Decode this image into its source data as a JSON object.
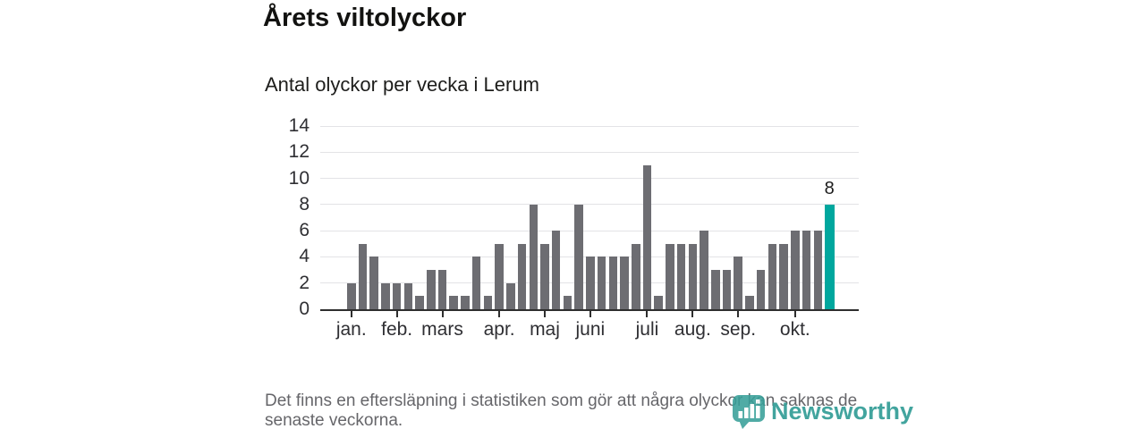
{
  "header": {
    "title": "Årets viltolyckor",
    "subtitle": "Antal olyckor per vecka i Lerum"
  },
  "footer": {
    "note": "Det finns en eftersläpning i statistiken som gör att några olyckor kan saknas de senaste veckorna.",
    "logo_text": "Newsworthy",
    "logo_icon": "newsworthy-bubble-barchart-icon"
  },
  "colors": {
    "bar": "#6d6d72",
    "highlight": "#00a79e",
    "grid": "#e3e3e6",
    "axis": "#2e2e2e",
    "axis_text": "#2f2f33",
    "title_text": "#121210",
    "footnote_text": "#66666a",
    "logo_teal": "#38a099"
  },
  "chart_data": {
    "type": "bar",
    "title": "Årets viltolyckor",
    "subtitle": "Antal olyckor per vecka i Lerum",
    "xlabel": "",
    "ylabel": "",
    "x_unit": "week",
    "x": [
      1,
      2,
      3,
      4,
      5,
      6,
      7,
      8,
      9,
      10,
      11,
      12,
      13,
      14,
      15,
      16,
      17,
      18,
      19,
      20,
      21,
      22,
      23,
      24,
      25,
      26,
      27,
      28,
      29,
      30,
      31,
      32,
      33,
      34,
      35,
      36,
      37,
      38,
      39,
      40,
      41,
      42,
      43
    ],
    "values": [
      2,
      5,
      4,
      2,
      2,
      2,
      1,
      3,
      3,
      1,
      1,
      4,
      1,
      5,
      2,
      5,
      8,
      5,
      6,
      1,
      8,
      4,
      4,
      4,
      4,
      5,
      11,
      1,
      5,
      5,
      5,
      6,
      3,
      3,
      4,
      1,
      3,
      5,
      5,
      6,
      6,
      6,
      8
    ],
    "highlight": {
      "index": 42,
      "value": 8,
      "label": "8",
      "color": "#00a79e"
    },
    "ylim": [
      0,
      14
    ],
    "y_ticks": [
      0,
      2,
      4,
      6,
      8,
      10,
      12,
      14
    ],
    "x_ticks": [
      {
        "week": 1,
        "label": "jan."
      },
      {
        "week": 5,
        "label": "feb."
      },
      {
        "week": 9,
        "label": "mars"
      },
      {
        "week": 14,
        "label": "apr."
      },
      {
        "week": 18,
        "label": "maj"
      },
      {
        "week": 22,
        "label": "juni"
      },
      {
        "week": 27,
        "label": "juli"
      },
      {
        "week": 31,
        "label": "aug."
      },
      {
        "week": 35,
        "label": "sep."
      },
      {
        "week": 40,
        "label": "okt."
      }
    ],
    "grid": "horizontal",
    "legend": "none"
  }
}
